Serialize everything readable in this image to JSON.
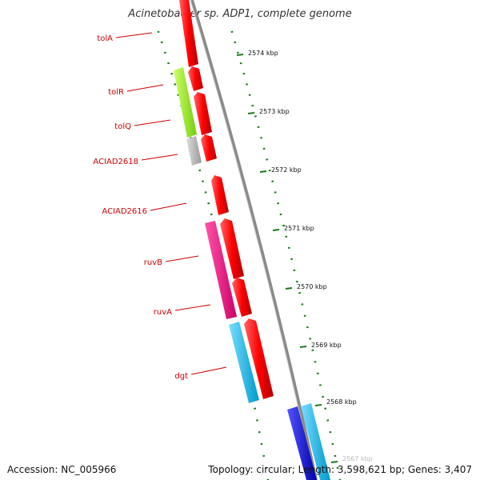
{
  "title": "Acinetobacter sp. ADP1, complete genome",
  "colors": {
    "backbone": "#8a8a8a",
    "dash_major": "#1a7a1a",
    "dash_minor": "#1a7a1a",
    "label_red": "#cc0000"
  },
  "genes": [
    {
      "name": "tolA",
      "color": "#ff0000",
      "strand": "plus"
    },
    {
      "name": "tolR",
      "color": "#ff0000",
      "strand": "plus"
    },
    {
      "name": "tolQ",
      "color": "#ff0000",
      "strand": "plus"
    },
    {
      "name": "ACIAD2618",
      "color": "#ff0000",
      "strand": "plus"
    },
    {
      "name": "ACIAD2616",
      "color": "#ff0000",
      "strand": "plus"
    },
    {
      "name": "ruvB",
      "color": "#ff0000",
      "strand": "plus"
    },
    {
      "name": "ruvA",
      "color": "#ff0000",
      "strand": "plus"
    },
    {
      "name": "dgt",
      "color": "#ff0000",
      "strand": "plus"
    }
  ],
  "cog_blocks": [
    {
      "color": "#99ee22"
    },
    {
      "color": "#bbbbbb"
    },
    {
      "color": "#ee1188"
    },
    {
      "color": "#11bbee"
    },
    {
      "color": "#1111dd"
    },
    {
      "color": "#22ccee"
    }
  ],
  "kbp_ticks": [
    "2574 kbp",
    "2573 kbp",
    "2572 kbp",
    "2571 kbp",
    "2570 kbp",
    "2569 kbp",
    "2568 kbp",
    "2567 kbp"
  ],
  "footer": {
    "accession": "Accession: NC_005966",
    "topology": "Topology: circular; Length: 3,598,621 bp; Genes: 3,407"
  }
}
